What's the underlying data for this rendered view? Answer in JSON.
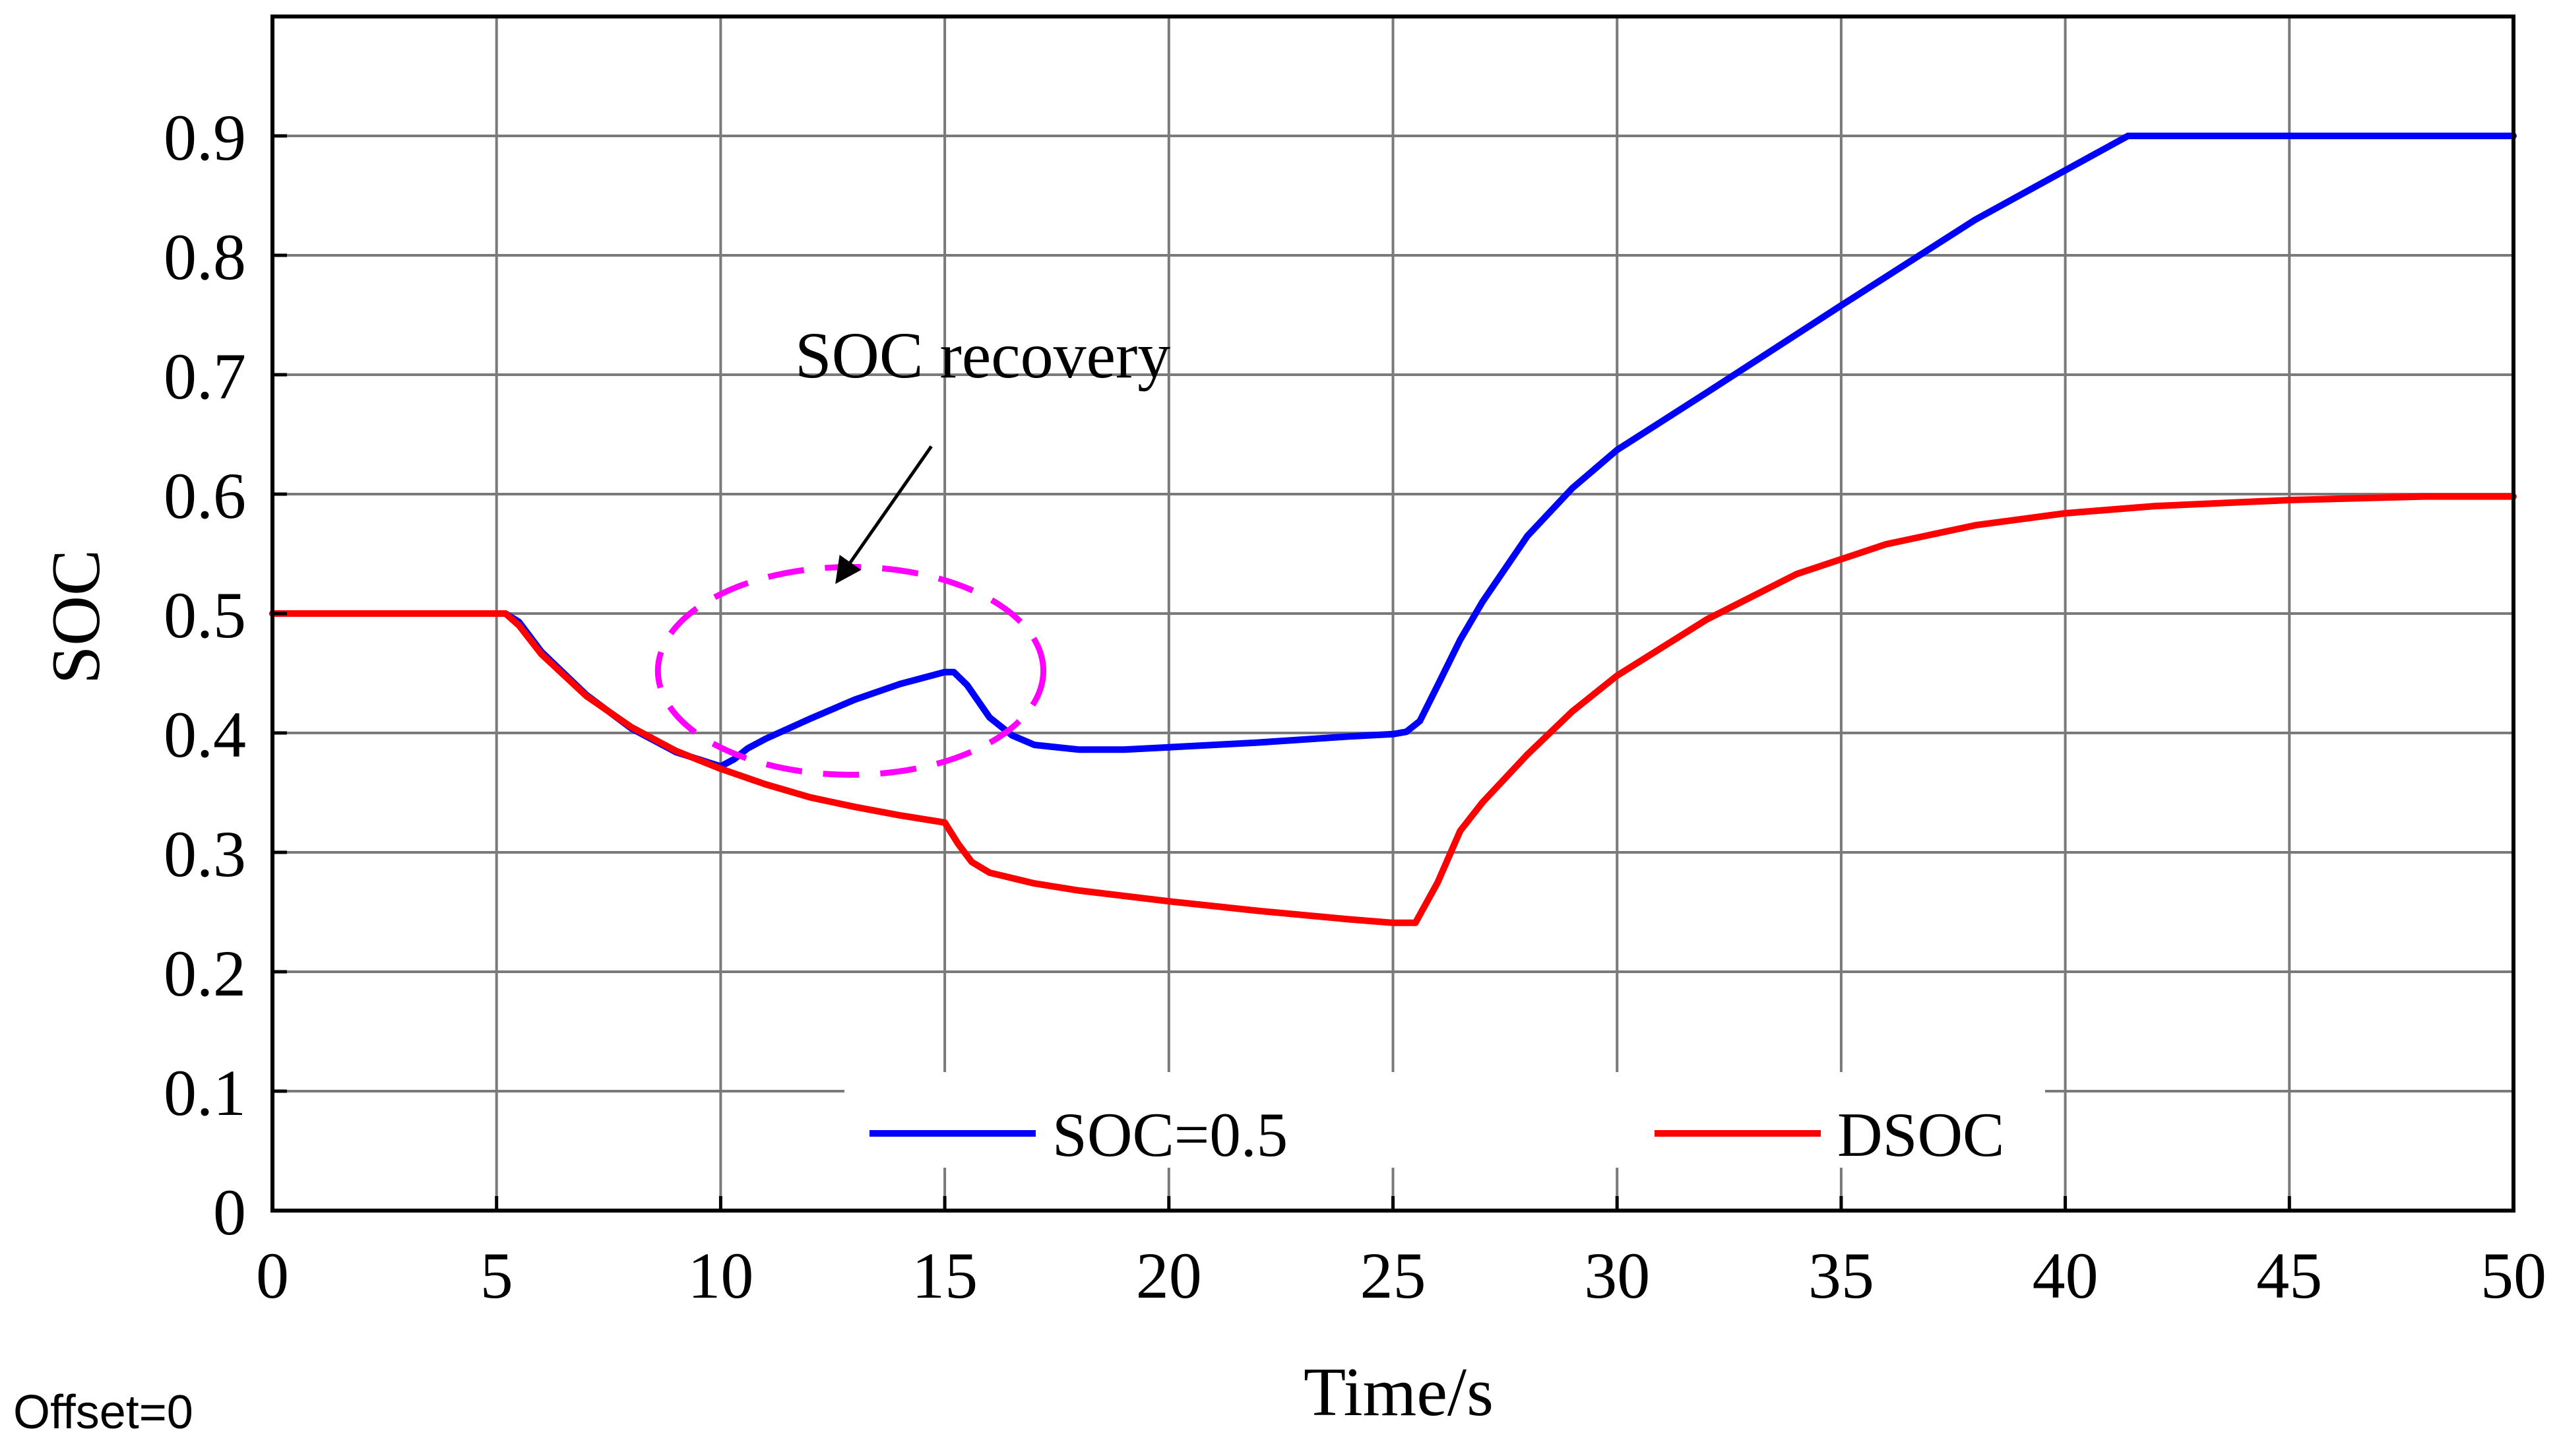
{
  "chart_data": {
    "type": "line",
    "title": "",
    "xlabel": "Time/s",
    "ylabel": "SOC",
    "xlim": [
      0,
      50
    ],
    "ylim": [
      0,
      1.0
    ],
    "grid": true,
    "xticks": [
      0,
      5,
      10,
      15,
      20,
      25,
      30,
      35,
      40,
      45,
      50
    ],
    "yticks": [
      0,
      0.1,
      0.2,
      0.3,
      0.4,
      0.5,
      0.6,
      0.7,
      0.8,
      0.9
    ],
    "xtick_labels": [
      "0",
      "5",
      "10",
      "15",
      "20",
      "25",
      "30",
      "35",
      "40",
      "45",
      "50"
    ],
    "ytick_labels": [
      "0",
      "0.1",
      "0.2",
      "0.3",
      "0.4",
      "0.5",
      "0.6",
      "0.7",
      "0.8",
      "0.9"
    ],
    "legend_position": "bottom",
    "series": [
      {
        "name": "SOC=0.5",
        "color": "#0000ff",
        "x": [
          0,
          5.2,
          5.5,
          6,
          7,
          8,
          9,
          10,
          10.3,
          10.6,
          11,
          12,
          13,
          14,
          15,
          15.2,
          15.5,
          16,
          16.5,
          17,
          18,
          19,
          20,
          22,
          24,
          25,
          25.3,
          25.6,
          26,
          26.5,
          27,
          28,
          29,
          30,
          32,
          35,
          38,
          41.4,
          45,
          50
        ],
        "y": [
          0.5,
          0.5,
          0.493,
          0.468,
          0.432,
          0.404,
          0.384,
          0.372,
          0.378,
          0.387,
          0.395,
          0.412,
          0.428,
          0.441,
          0.451,
          0.451,
          0.44,
          0.413,
          0.398,
          0.39,
          0.386,
          0.386,
          0.388,
          0.392,
          0.397,
          0.399,
          0.401,
          0.41,
          0.44,
          0.478,
          0.51,
          0.565,
          0.605,
          0.637,
          0.685,
          0.758,
          0.83,
          0.9,
          0.9,
          0.9
        ]
      },
      {
        "name": "DSOC",
        "color": "#ff0000",
        "x": [
          0,
          5.2,
          5.5,
          6,
          7,
          8,
          9,
          10,
          11,
          12,
          13,
          14,
          15,
          15.3,
          15.6,
          16,
          17,
          18,
          20,
          22,
          24,
          25,
          25.5,
          26,
          26.5,
          27,
          28,
          29,
          30,
          32,
          34,
          36,
          38,
          40,
          42,
          45,
          48,
          50
        ],
        "y": [
          0.5,
          0.5,
          0.49,
          0.466,
          0.431,
          0.405,
          0.385,
          0.37,
          0.357,
          0.346,
          0.338,
          0.331,
          0.325,
          0.307,
          0.292,
          0.283,
          0.274,
          0.268,
          0.259,
          0.251,
          0.244,
          0.241,
          0.241,
          0.275,
          0.318,
          0.342,
          0.382,
          0.418,
          0.448,
          0.495,
          0.533,
          0.558,
          0.574,
          0.584,
          0.59,
          0.595,
          0.598,
          0.598
        ]
      }
    ],
    "annotations": [
      {
        "text": "SOC recovery",
        "ellipse": {
          "cx": 12.9,
          "cy": 0.452,
          "rx": 4.3,
          "ry": 0.087,
          "color": "#ff00ff",
          "style": "dashed"
        },
        "arrow": {
          "from": [
            14.7,
            0.64
          ],
          "to": [
            12.6,
            0.527
          ]
        }
      }
    ]
  },
  "footer": {
    "offset_label": "Offset=0"
  }
}
